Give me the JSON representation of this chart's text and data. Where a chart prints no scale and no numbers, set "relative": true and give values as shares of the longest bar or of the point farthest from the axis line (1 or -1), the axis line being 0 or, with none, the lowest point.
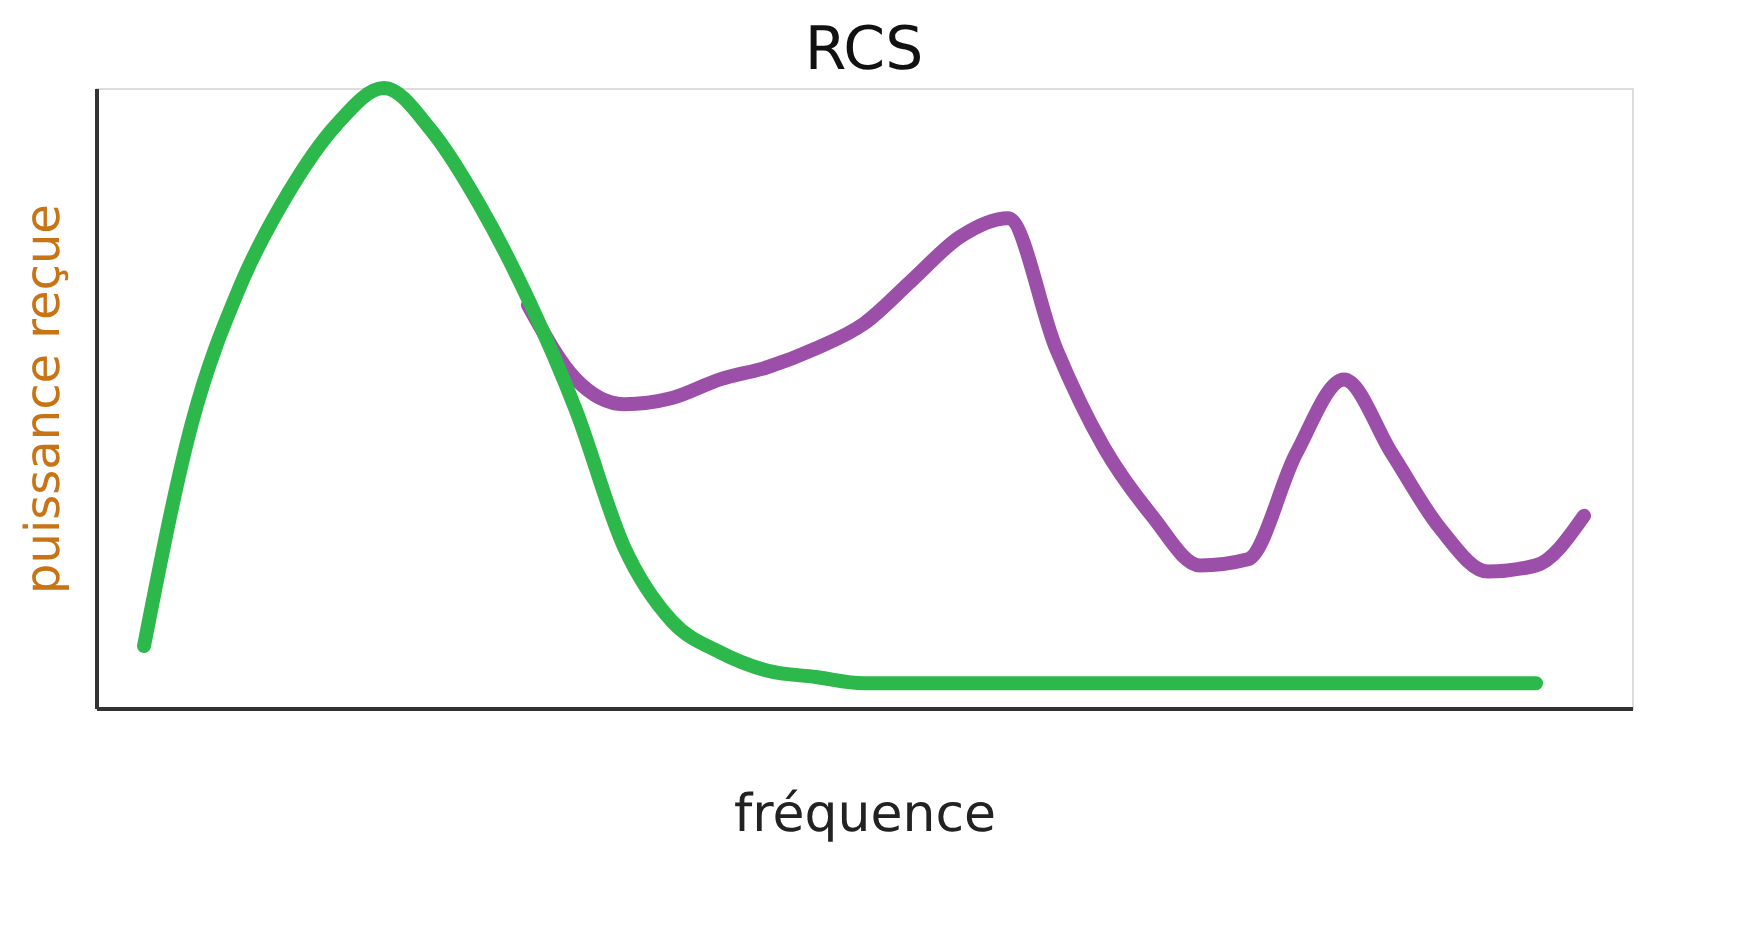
{
  "chart_data": {
    "type": "line",
    "title": "RCS",
    "xlabel": "fréquence",
    "ylabel": "puissance reçue",
    "relative": true,
    "legend": false,
    "grid": false,
    "marker": "none",
    "line_style": "solid",
    "categories": [
      null,
      null,
      null,
      null,
      null,
      null,
      null,
      null,
      null,
      null,
      null,
      null,
      null,
      null,
      null,
      null,
      null,
      null,
      null,
      null,
      null,
      null,
      null,
      null,
      null,
      null,
      null,
      null,
      null,
      null,
      null
    ],
    "series": [
      {
        "color": "#9b4fa8",
        "values": [
          null,
          null,
          null,
          null,
          null,
          null,
          null,
          null,
          0.65,
          0.53,
          0.49,
          0.5,
          0.53,
          0.55,
          0.58,
          0.62,
          0.69,
          0.76,
          0.79,
          0.58,
          0.42,
          0.31,
          0.23,
          0.24,
          0.41,
          0.53,
          0.41,
          0.29,
          0.22,
          0.23,
          0.31
        ]
      },
      {
        "color": "#2db84b",
        "values": [
          0.1,
          0.46,
          0.68,
          0.83,
          0.94,
          1.0,
          0.93,
          0.81,
          0.66,
          0.48,
          0.26,
          0.14,
          0.09,
          0.06,
          0.05,
          0.04,
          0.04,
          0.04,
          0.04,
          0.04,
          0.04,
          0.04,
          0.04,
          0.04,
          0.04,
          0.04,
          0.04,
          0.04,
          0.04,
          0.04,
          null
        ]
      }
    ]
  }
}
